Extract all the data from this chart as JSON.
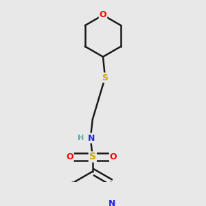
{
  "background_color": "#e8e8e8",
  "bond_color": "#1a1a1a",
  "bond_width": 1.8,
  "atom_colors": {
    "O": "#ff0000",
    "N": "#2222ee",
    "S_thio": "#ccaa00",
    "S_sulfonyl": "#ccaa00",
    "H": "#55aaaa",
    "C": "#1a1a1a"
  },
  "figsize": [
    3.0,
    3.0
  ],
  "dpi": 100
}
